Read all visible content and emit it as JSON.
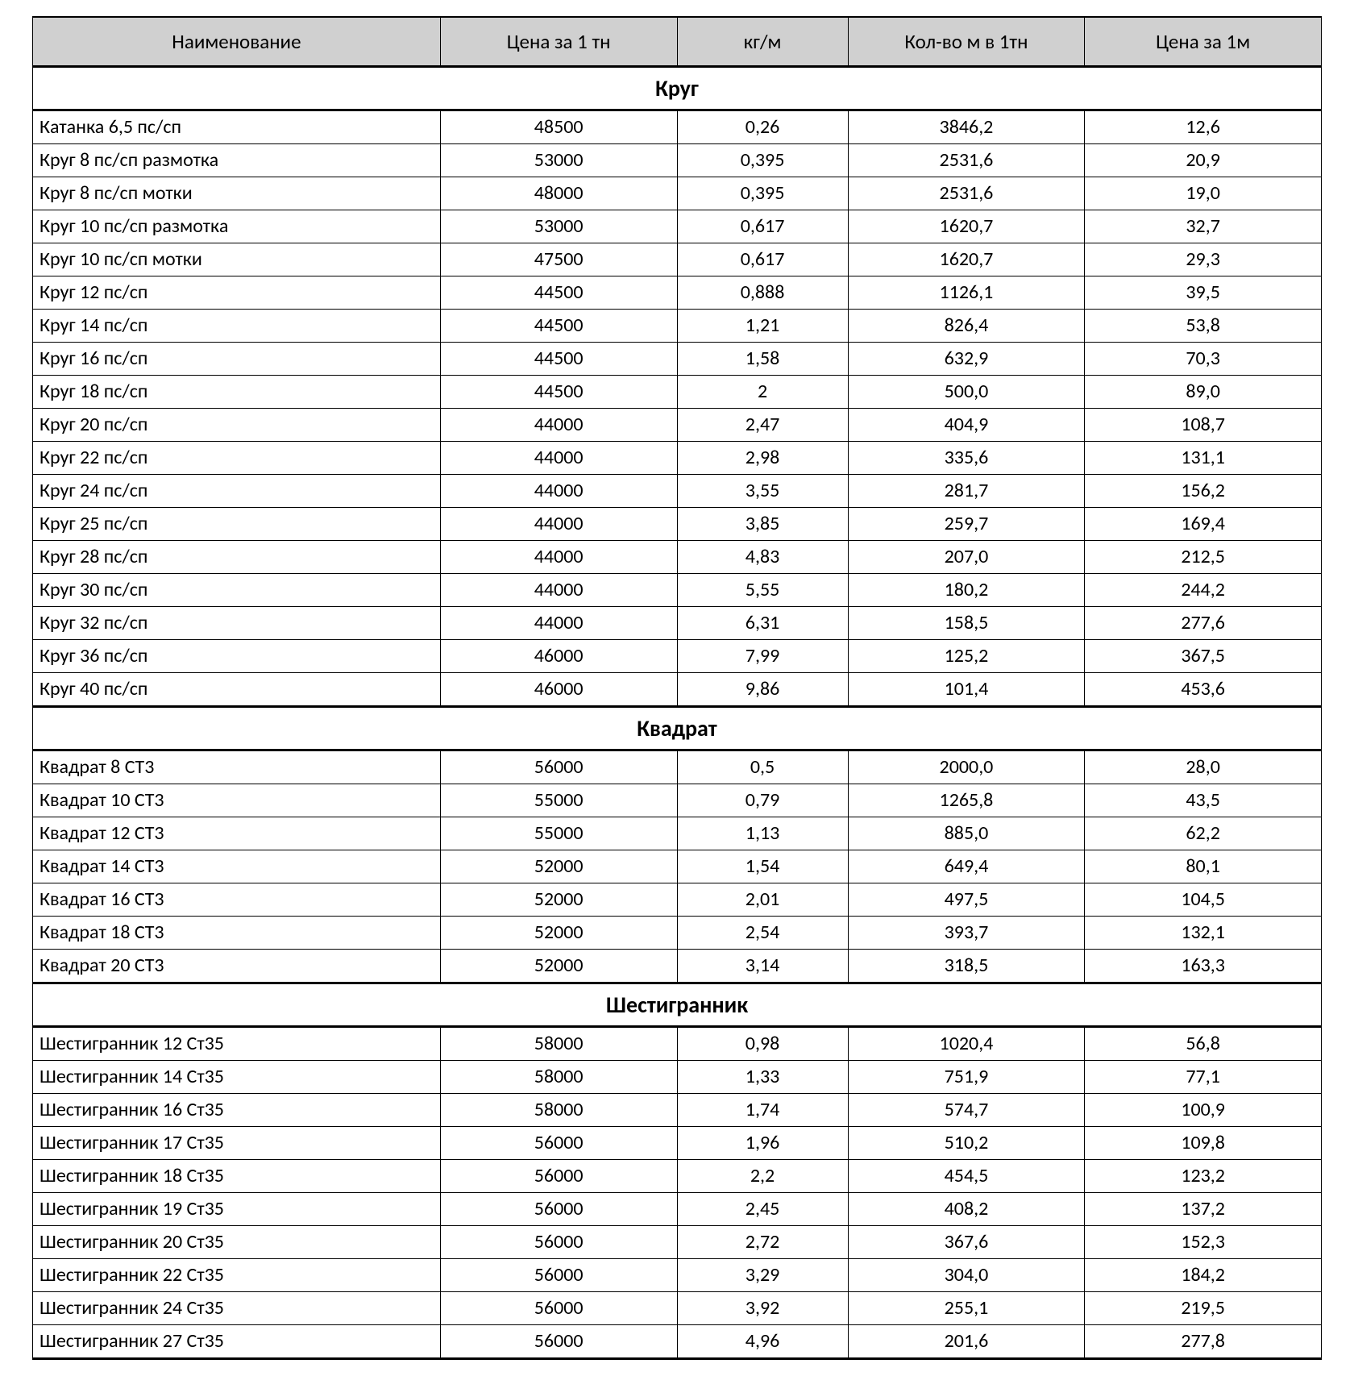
{
  "table": {
    "type": "table",
    "background_color": "#ffffff",
    "header_bg": "#d0d0d0",
    "border_color": "#000000",
    "text_color": "#000000",
    "header_fontsize": 25,
    "body_fontsize": 24,
    "section_fontsize": 28,
    "col_widths_pct": [
      31,
      18,
      13,
      18,
      18
    ],
    "columns": [
      "Наименование",
      "Цена за 1 тн",
      "кг/м",
      "Кол-во м в 1тн",
      "Цена за 1м"
    ],
    "sections": [
      {
        "title": "Круг",
        "rows": [
          [
            "Катанка 6,5 пс/сп",
            "48500",
            "0,26",
            "3846,2",
            "12,6"
          ],
          [
            "Круг 8 пс/сп размотка",
            "53000",
            "0,395",
            "2531,6",
            "20,9"
          ],
          [
            "Круг 8 пс/сп мотки",
            "48000",
            "0,395",
            "2531,6",
            "19,0"
          ],
          [
            "Круг 10 пс/сп размотка",
            "53000",
            "0,617",
            "1620,7",
            "32,7"
          ],
          [
            "Круг 10 пс/сп мотки",
            "47500",
            "0,617",
            "1620,7",
            "29,3"
          ],
          [
            "Круг 12 пс/сп",
            "44500",
            "0,888",
            "1126,1",
            "39,5"
          ],
          [
            "Круг 14 пс/сп",
            "44500",
            "1,21",
            "826,4",
            "53,8"
          ],
          [
            "Круг 16 пс/сп",
            "44500",
            "1,58",
            "632,9",
            "70,3"
          ],
          [
            "Круг 18 пс/сп",
            "44500",
            "2",
            "500,0",
            "89,0"
          ],
          [
            "Круг 20 пс/сп",
            "44000",
            "2,47",
            "404,9",
            "108,7"
          ],
          [
            "Круг 22 пс/сп",
            "44000",
            "2,98",
            "335,6",
            "131,1"
          ],
          [
            "Круг 24 пс/сп",
            "44000",
            "3,55",
            "281,7",
            "156,2"
          ],
          [
            "Круг 25 пс/сп",
            "44000",
            "3,85",
            "259,7",
            "169,4"
          ],
          [
            "Круг 28 пс/сп",
            "44000",
            "4,83",
            "207,0",
            "212,5"
          ],
          [
            "Круг 30 пс/сп",
            "44000",
            "5,55",
            "180,2",
            "244,2"
          ],
          [
            "Круг 32 пс/сп",
            "44000",
            "6,31",
            "158,5",
            "277,6"
          ],
          [
            "Круг 36 пс/сп",
            "46000",
            "7,99",
            "125,2",
            "367,5"
          ],
          [
            "Круг 40 пс/сп",
            "46000",
            "9,86",
            "101,4",
            "453,6"
          ]
        ]
      },
      {
        "title": "Квадрат",
        "rows": [
          [
            "Квадрат 8 СТ3",
            "56000",
            "0,5",
            "2000,0",
            "28,0"
          ],
          [
            "Квадрат 10 СТ3",
            "55000",
            "0,79",
            "1265,8",
            "43,5"
          ],
          [
            "Квадрат 12 СТ3",
            "55000",
            "1,13",
            "885,0",
            "62,2"
          ],
          [
            "Квадрат 14 СТ3",
            "52000",
            "1,54",
            "649,4",
            "80,1"
          ],
          [
            "Квадрат 16 СТ3",
            "52000",
            "2,01",
            "497,5",
            "104,5"
          ],
          [
            "Квадрат 18 СТ3",
            "52000",
            "2,54",
            "393,7",
            "132,1"
          ],
          [
            "Квадрат 20 СТ3",
            "52000",
            "3,14",
            "318,5",
            "163,3"
          ]
        ]
      },
      {
        "title": "Шестигранник",
        "rows": [
          [
            "Шестигранник 12 Ст35",
            "58000",
            "0,98",
            "1020,4",
            "56,8"
          ],
          [
            "Шестигранник 14 Ст35",
            "58000",
            "1,33",
            "751,9",
            "77,1"
          ],
          [
            "Шестигранник 16 Ст35",
            "58000",
            "1,74",
            "574,7",
            "100,9"
          ],
          [
            "Шестигранник 17 Ст35",
            "56000",
            "1,96",
            "510,2",
            "109,8"
          ],
          [
            "Шестигранник 18 Ст35",
            "56000",
            "2,2",
            "454,5",
            "123,2"
          ],
          [
            "Шестигранник 19 Ст35",
            "56000",
            "2,45",
            "408,2",
            "137,2"
          ],
          [
            "Шестигранник 20 Ст35",
            "56000",
            "2,72",
            "367,6",
            "152,3"
          ],
          [
            "Шестигранник 22 Ст35",
            "56000",
            "3,29",
            "304,0",
            "184,2"
          ],
          [
            "Шестигранник 24 Ст35",
            "56000",
            "3,92",
            "255,1",
            "219,5"
          ],
          [
            "Шестигранник 27 Ст35",
            "56000",
            "4,96",
            "201,6",
            "277,8"
          ]
        ]
      }
    ]
  }
}
